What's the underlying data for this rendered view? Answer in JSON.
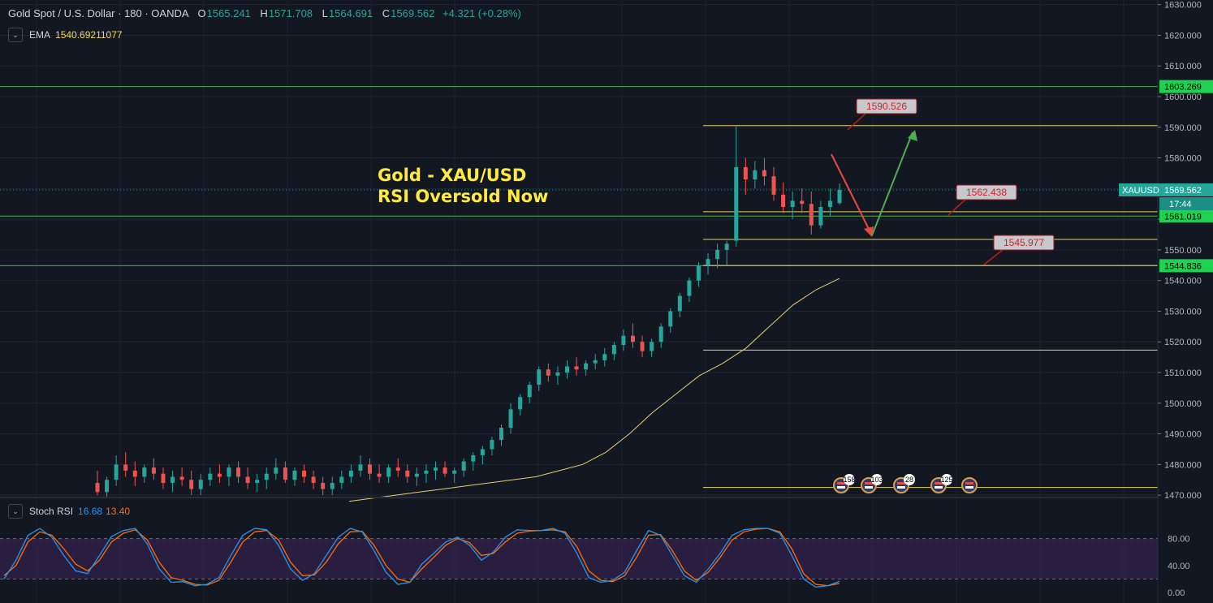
{
  "header": {
    "symbol": "Gold Spot / U.S. Dollar · 180 · OANDA",
    "o_label": "O",
    "o_value": "1565.241",
    "h_label": "H",
    "h_value": "1571.708",
    "l_label": "L",
    "l_value": "1564.691",
    "c_label": "C",
    "c_value": "1569.562",
    "change": "+4.321 (+0.28%)"
  },
  "ema": {
    "name": "EMA",
    "value": "1540.69211077"
  },
  "stoch": {
    "name": "Stoch RSI",
    "k": "16.68",
    "d": "13.40"
  },
  "overlay_title": {
    "line1": "Gold - XAU/USD",
    "line2": "RSI Oversold Now"
  },
  "colors": {
    "background": "#131722",
    "up": "#26a69a",
    "down": "#ef5350",
    "ema": "#e8cf6a",
    "green_line": "#4caf50",
    "yellow_line": "#e6d36c",
    "stoch_k": "#2196f3",
    "stoch_d": "#ff6d00",
    "band_fill": "#3c2457",
    "title": "#ffeb3b"
  },
  "price_axis": {
    "ticks": [
      "1630.000",
      "1620.000",
      "1610.000",
      "1600.000",
      "1590.000",
      "1580.000",
      "1570.000",
      "1560.000",
      "1550.000",
      "1540.000",
      "1530.000",
      "1520.000",
      "1510.000",
      "1500.000",
      "1490.000",
      "1480.000",
      "1470.000"
    ],
    "current_symbol": "XAUUSD",
    "current_price": "1569.562",
    "countdown": "17:44"
  },
  "rsi_axis": {
    "ticks": [
      "80.00",
      "40.00",
      "0.00"
    ]
  },
  "chart_data": {
    "type": "candlestick",
    "ylim": [
      1469.5,
      1631.5
    ],
    "horizontal_levels": [
      {
        "price": 1603.269,
        "label": "1603.269",
        "color": "green",
        "from": "start"
      },
      {
        "price": 1561.019,
        "label": "1561.019",
        "color": "green",
        "from": "start"
      },
      {
        "price": 1544.836,
        "label": "1544.836",
        "color": "green",
        "from": "start"
      },
      {
        "price": 1590.526,
        "color": "yellow",
        "from": "mid"
      },
      {
        "price": 1562.438,
        "color": "yellow",
        "from": "mid"
      },
      {
        "price": 1553.4,
        "color": "yellow",
        "from": "mid"
      },
      {
        "price": 1544.9,
        "color": "yellow",
        "from": "mid"
      },
      {
        "price": 1517.3,
        "color": "yellow",
        "from": "mid"
      },
      {
        "price": 1472.5,
        "color": "yellow",
        "from": "mid"
      }
    ],
    "callouts": [
      "1590.526",
      "1562.438",
      "1545.977"
    ],
    "event_counts": [
      "158",
      "103",
      "28",
      "125"
    ],
    "candles_ohlc": [
      [
        1474,
        1478,
        1470,
        1471
      ],
      [
        1471,
        1476,
        1469,
        1475
      ],
      [
        1475,
        1483,
        1473,
        1480
      ],
      [
        1480,
        1484,
        1476,
        1478
      ],
      [
        1478,
        1481,
        1473,
        1476
      ],
      [
        1476,
        1480,
        1474,
        1479
      ],
      [
        1479,
        1482,
        1475,
        1477
      ],
      [
        1477,
        1479,
        1472,
        1474
      ],
      [
        1474,
        1478,
        1471,
        1476
      ],
      [
        1476,
        1479,
        1473,
        1475
      ],
      [
        1475,
        1478,
        1470,
        1472
      ],
      [
        1472,
        1477,
        1470,
        1475
      ],
      [
        1475,
        1479,
        1473,
        1477
      ],
      [
        1477,
        1480,
        1474,
        1476
      ],
      [
        1476,
        1480,
        1473,
        1479
      ],
      [
        1479,
        1481,
        1474,
        1476
      ],
      [
        1476,
        1479,
        1472,
        1474
      ],
      [
        1474,
        1477,
        1471,
        1475
      ],
      [
        1475,
        1479,
        1472,
        1477
      ],
      [
        1477,
        1482,
        1475,
        1479
      ],
      [
        1479,
        1481,
        1474,
        1475
      ],
      [
        1475,
        1479,
        1473,
        1478
      ],
      [
        1478,
        1480,
        1474,
        1476
      ],
      [
        1476,
        1478,
        1472,
        1474
      ],
      [
        1474,
        1476,
        1470,
        1472
      ],
      [
        1472,
        1476,
        1470,
        1474
      ],
      [
        1474,
        1478,
        1472,
        1476
      ],
      [
        1476,
        1480,
        1474,
        1478
      ],
      [
        1478,
        1483,
        1476,
        1480
      ],
      [
        1480,
        1482,
        1475,
        1477
      ],
      [
        1477,
        1480,
        1474,
        1476
      ],
      [
        1476,
        1480,
        1474,
        1479
      ],
      [
        1479,
        1482,
        1476,
        1478
      ],
      [
        1478,
        1480,
        1474,
        1476
      ],
      [
        1476,
        1479,
        1473,
        1477
      ],
      [
        1477,
        1480,
        1474,
        1478
      ],
      [
        1478,
        1481,
        1475,
        1479
      ],
      [
        1479,
        1481,
        1476,
        1477
      ],
      [
        1477,
        1479,
        1474,
        1478
      ],
      [
        1478,
        1482,
        1476,
        1481
      ],
      [
        1481,
        1484,
        1478,
        1483
      ],
      [
        1483,
        1486,
        1480,
        1485
      ],
      [
        1485,
        1489,
        1483,
        1488
      ],
      [
        1488,
        1493,
        1486,
        1492
      ],
      [
        1492,
        1500,
        1490,
        1498
      ],
      [
        1498,
        1503,
        1496,
        1502
      ],
      [
        1502,
        1507,
        1500,
        1506
      ],
      [
        1506,
        1512,
        1504,
        1511
      ],
      [
        1511,
        1513,
        1507,
        1509
      ],
      [
        1509,
        1512,
        1506,
        1510
      ],
      [
        1510,
        1514,
        1508,
        1512
      ],
      [
        1512,
        1515,
        1509,
        1511
      ],
      [
        1511,
        1514,
        1509,
        1513
      ],
      [
        1513,
        1516,
        1511,
        1514
      ],
      [
        1514,
        1518,
        1512,
        1516
      ],
      [
        1516,
        1520,
        1514,
        1519
      ],
      [
        1519,
        1524,
        1517,
        1522
      ],
      [
        1522,
        1526,
        1518,
        1520
      ],
      [
        1520,
        1522,
        1515,
        1517
      ],
      [
        1517,
        1521,
        1515,
        1520
      ],
      [
        1520,
        1526,
        1518,
        1525
      ],
      [
        1525,
        1531,
        1523,
        1530
      ],
      [
        1530,
        1536,
        1528,
        1535
      ],
      [
        1535,
        1541,
        1533,
        1540
      ],
      [
        1540,
        1546,
        1538,
        1545
      ],
      [
        1545,
        1549,
        1542,
        1547
      ],
      [
        1547,
        1552,
        1544,
        1550
      ],
      [
        1550,
        1553,
        1545,
        1552
      ],
      [
        1553,
        1590.5,
        1551,
        1577
      ],
      [
        1577,
        1580,
        1568,
        1573
      ],
      [
        1573,
        1579,
        1570,
        1576
      ],
      [
        1576,
        1580,
        1571,
        1574
      ],
      [
        1574,
        1577,
        1566,
        1568
      ],
      [
        1568,
        1572,
        1562,
        1564
      ],
      [
        1564,
        1569,
        1560,
        1566
      ],
      [
        1566,
        1570,
        1562,
        1565
      ],
      [
        1565,
        1569,
        1555,
        1558
      ],
      [
        1558,
        1566,
        1557,
        1564
      ],
      [
        1564,
        1570,
        1561,
        1566
      ],
      [
        1565.241,
        1571.708,
        1564.691,
        1569.562
      ]
    ],
    "ema_path_prices": [
      1468,
      1469,
      1470,
      1471,
      1472,
      1473,
      1474,
      1475,
      1476,
      1478,
      1480,
      1484,
      1490,
      1497,
      1503,
      1509,
      1513,
      1518,
      1525,
      1532,
      1537,
      1540.69
    ],
    "stoch_rsi": {
      "ylim": [
        0,
        100
      ],
      "upper_band": 80,
      "lower_band": 20,
      "k": [
        20,
        48,
        85,
        95,
        82,
        55,
        32,
        28,
        55,
        83,
        92,
        95,
        72,
        35,
        15,
        16,
        10,
        12,
        22,
        55,
        85,
        95,
        93,
        70,
        35,
        18,
        28,
        55,
        82,
        95,
        90,
        62,
        30,
        12,
        15,
        42,
        58,
        75,
        82,
        70,
        48,
        60,
        82,
        93,
        92,
        92,
        95,
        88,
        58,
        22,
        15,
        18,
        30,
        62,
        92,
        85,
        55,
        25,
        15,
        35,
        58,
        85,
        93,
        95,
        95,
        88,
        55,
        20,
        8,
        10,
        16.68
      ],
      "d": [
        25,
        40,
        75,
        90,
        85,
        65,
        42,
        32,
        48,
        75,
        88,
        93,
        78,
        45,
        22,
        18,
        12,
        11,
        18,
        45,
        75,
        90,
        92,
        78,
        45,
        25,
        26,
        45,
        72,
        90,
        91,
        70,
        40,
        20,
        15,
        35,
        52,
        70,
        80,
        74,
        55,
        58,
        75,
        88,
        91,
        92,
        93,
        90,
        68,
        32,
        18,
        16,
        25,
        52,
        85,
        86,
        62,
        32,
        18,
        30,
        52,
        78,
        90,
        94,
        95,
        90,
        65,
        28,
        12,
        10,
        13.4
      ]
    }
  }
}
